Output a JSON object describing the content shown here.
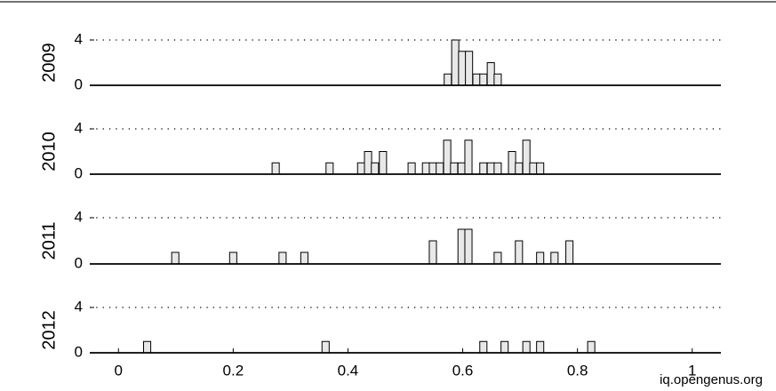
{
  "chart_data": [
    {
      "type": "bar",
      "ylabel": "2009",
      "color": "#e8e8e8",
      "xlim": [
        -0.05,
        1.05
      ],
      "ylim": [
        0,
        4
      ],
      "yticks": [
        0,
        4
      ],
      "x": [
        0.574,
        0.587,
        0.599,
        0.611,
        0.624,
        0.636,
        0.649,
        0.661
      ],
      "values": [
        1,
        4,
        3,
        3,
        1,
        1,
        2,
        1
      ]
    },
    {
      "type": "bar",
      "ylabel": "2010",
      "color": "#e8e8e8",
      "xlim": [
        -0.05,
        1.05
      ],
      "ylim": [
        0,
        4
      ],
      "yticks": [
        0,
        4
      ],
      "x": [
        0.274,
        0.368,
        0.423,
        0.435,
        0.447,
        0.461,
        0.511,
        0.536,
        0.548,
        0.56,
        0.573,
        0.585,
        0.598,
        0.61,
        0.636,
        0.649,
        0.661,
        0.686,
        0.698,
        0.711,
        0.723,
        0.735
      ],
      "values": [
        1,
        1,
        1,
        2,
        1,
        2,
        1,
        1,
        1,
        1,
        3,
        1,
        1,
        3,
        1,
        1,
        1,
        2,
        1,
        3,
        1,
        1
      ]
    },
    {
      "type": "bar",
      "ylabel": "2011",
      "color": "#e8e8e8",
      "xlim": [
        -0.05,
        1.05
      ],
      "ylim": [
        0,
        4
      ],
      "yticks": [
        0,
        4
      ],
      "x": [
        0.099,
        0.2,
        0.286,
        0.324,
        0.548,
        0.598,
        0.61,
        0.661,
        0.698,
        0.735,
        0.76,
        0.786
      ],
      "values": [
        1,
        1,
        1,
        1,
        2,
        3,
        3,
        1,
        2,
        1,
        1,
        2
      ]
    },
    {
      "type": "bar",
      "ylabel": "2012",
      "color": "#e8e8e8",
      "xlim": [
        -0.05,
        1.05
      ],
      "ylim": [
        0,
        4
      ],
      "yticks": [
        0,
        4
      ],
      "x": [
        0.05,
        0.361,
        0.636,
        0.673,
        0.711,
        0.735,
        0.824
      ],
      "values": [
        1,
        1,
        1,
        1,
        1,
        1,
        1
      ],
      "xticks": [
        0,
        0.2,
        0.4,
        0.6,
        0.8,
        1
      ]
    }
  ],
  "watermark": "iq.opengenus.org"
}
